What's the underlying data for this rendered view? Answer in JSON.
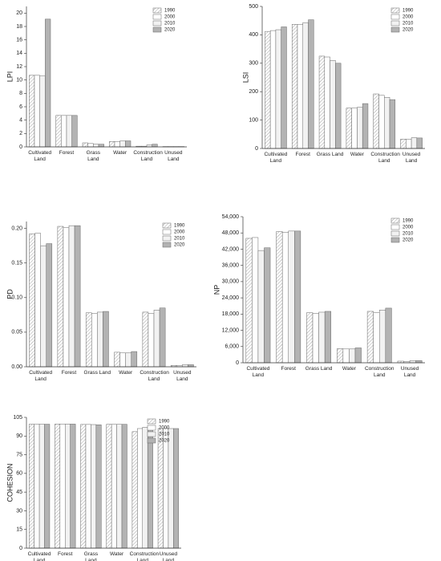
{
  "chart_data": [
    {
      "type": "bar",
      "ylabel": "LPI",
      "legend": "upper right",
      "categories": [
        "Cultivated Land",
        "Forest",
        "Grass Land",
        "Water",
        "Construction Land",
        "Unused Land"
      ],
      "series": [
        {
          "name": "1990",
          "color": "#ffffff",
          "hatch": true,
          "values": [
            10.7,
            4.7,
            0.6,
            0.8,
            0.1,
            0.05
          ]
        },
        {
          "name": "2000",
          "color": "#ffffff",
          "values": [
            10.7,
            4.7,
            0.5,
            0.8,
            0.1,
            0.05
          ]
        },
        {
          "name": "2010",
          "color": "#f2f2f2",
          "values": [
            10.6,
            4.7,
            0.4,
            0.9,
            0.3,
            0.05
          ]
        },
        {
          "name": "2020",
          "color": "#b3b3b3",
          "values": [
            19.1,
            4.7,
            0.4,
            0.9,
            0.4,
            0.05
          ]
        }
      ],
      "ylim": [
        0,
        21
      ],
      "yticks": [
        0,
        2,
        4,
        6,
        8,
        10,
        12,
        14,
        16,
        18,
        20
      ]
    },
    {
      "type": "bar",
      "ylabel": "LSI",
      "legend": "upper right",
      "categories": [
        "Cultivated Land",
        "Forest",
        "Grass Land",
        "Water",
        "Construction Land",
        "Unused Land"
      ],
      "series": [
        {
          "name": "1990",
          "color": "#ffffff",
          "hatch": true,
          "values": [
            412,
            437,
            325,
            142,
            192,
            33
          ]
        },
        {
          "name": "2000",
          "color": "#ffffff",
          "values": [
            415,
            437,
            322,
            142,
            187,
            32
          ]
        },
        {
          "name": "2010",
          "color": "#f2f2f2",
          "values": [
            418,
            443,
            310,
            145,
            180,
            38
          ]
        },
        {
          "name": "2020",
          "color": "#b3b3b3",
          "values": [
            428,
            453,
            300,
            158,
            172,
            37
          ]
        }
      ],
      "ylim": [
        0,
        500
      ],
      "yticks": [
        0,
        100,
        200,
        300,
        400,
        500
      ]
    },
    {
      "type": "bar",
      "ylabel": "PD",
      "legend": "upper right",
      "categories": [
        "Cultivated Land",
        "Forest",
        "Grass Land",
        "Water",
        "Construction Land",
        "Unused Land"
      ],
      "series": [
        {
          "name": "1990",
          "color": "#ffffff",
          "hatch": true,
          "values": [
            0.192,
            0.203,
            0.078,
            0.021,
            0.079,
            0.002
          ]
        },
        {
          "name": "2000",
          "color": "#ffffff",
          "values": [
            0.193,
            0.201,
            0.077,
            0.02,
            0.077,
            0.002
          ]
        },
        {
          "name": "2010",
          "color": "#f2f2f2",
          "values": [
            0.175,
            0.204,
            0.079,
            0.02,
            0.082,
            0.003
          ]
        },
        {
          "name": "2020",
          "color": "#b3b3b3",
          "values": [
            0.178,
            0.204,
            0.08,
            0.022,
            0.085,
            0.003
          ]
        }
      ],
      "ylim": [
        0,
        0.21
      ],
      "yticks": [
        {
          "value": 0,
          "label": "0.00"
        },
        0.05,
        {
          "value": 0.1,
          "label": "0.10"
        },
        0.15,
        {
          "value": 0.2,
          "label": "0.20"
        }
      ]
    },
    {
      "type": "bar",
      "ylabel": "NP",
      "legend": "upper right",
      "categories": [
        "Cultivated Land",
        "Forest",
        "Grass Land",
        "Water",
        "Construction Land",
        "Unused Land"
      ],
      "series": [
        {
          "name": "1990",
          "color": "#ffffff",
          "hatch": true,
          "values": [
            46000,
            48500,
            18500,
            5200,
            19000,
            600
          ]
        },
        {
          "name": "2000",
          "color": "#ffffff",
          "values": [
            46300,
            48200,
            18300,
            5100,
            18500,
            500
          ]
        },
        {
          "name": "2010",
          "color": "#f2f2f2",
          "values": [
            41500,
            48700,
            18700,
            5100,
            19500,
            800
          ]
        },
        {
          "name": "2020",
          "color": "#b3b3b3",
          "values": [
            42500,
            48700,
            19000,
            5500,
            20200,
            800
          ]
        }
      ],
      "ylim": [
        0,
        54000
      ],
      "yticks": [
        0,
        {
          "value": 6000,
          "label": "6,000"
        },
        {
          "value": 12000,
          "label": "12,000"
        },
        {
          "value": 18000,
          "label": "18,000"
        },
        {
          "value": 24000,
          "label": "24,000"
        },
        {
          "value": 30000,
          "label": "30,000"
        },
        {
          "value": 36000,
          "label": "36,000"
        },
        {
          "value": 42000,
          "label": "42,000"
        },
        {
          "value": 48000,
          "label": "48,000"
        },
        {
          "value": 54000,
          "label": "54,000"
        }
      ]
    },
    {
      "type": "bar",
      "ylabel": "COHESION",
      "legend": "upper right",
      "categories": [
        "Cultivated Land",
        "Forest",
        "Grass Land",
        "Water",
        "Construction Land",
        "Unused Land"
      ],
      "series": [
        {
          "name": "1990",
          "color": "#ffffff",
          "hatch": true,
          "values": [
            99.5,
            99.6,
            99.3,
            99.4,
            93.5,
            96
          ]
        },
        {
          "name": "2000",
          "color": "#ffffff",
          "values": [
            99.5,
            99.6,
            99.3,
            99.4,
            96,
            96
          ]
        },
        {
          "name": "2010",
          "color": "#f2f2f2",
          "values": [
            99.5,
            99.6,
            99.2,
            99.4,
            97,
            96
          ]
        },
        {
          "name": "2020",
          "color": "#b3b3b3",
          "values": [
            99.5,
            99.6,
            99,
            99.4,
            97.5,
            96
          ]
        }
      ],
      "ylim": [
        0,
        105
      ],
      "yticks": [
        0,
        15,
        30,
        45,
        60,
        75,
        90,
        105
      ]
    }
  ]
}
